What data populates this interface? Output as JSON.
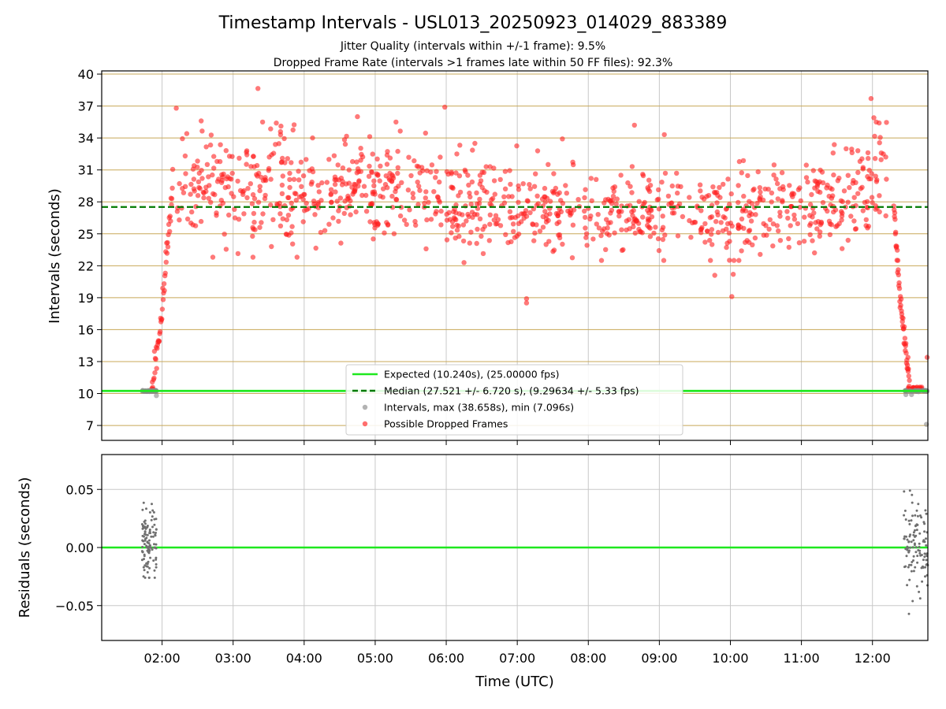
{
  "chart_data": [
    {
      "type": "scatter",
      "title": "Timestamp Intervals - USL013_20250923_014029_883389",
      "subtitle_lines": [
        "Jitter Quality (intervals within +/-1 frame): 9.5%",
        "Dropped Frame Rate (intervals >1 frames late within 50 FF files): 92.3%"
      ],
      "xlabel": "",
      "ylabel": "Intervals (seconds)",
      "x_unit": "hours (UTC)",
      "xlim": [
        1.15,
        12.78
      ],
      "ylim": [
        5.6,
        40.3
      ],
      "yticks": [
        7,
        10,
        13,
        16,
        19,
        22,
        25,
        28,
        31,
        34,
        37,
        40
      ],
      "grid": true,
      "horizontal_gridlines_color": "#c8a858",
      "vertical_gridlines_color": "#c8c8c8",
      "expected_interval": 10.24,
      "median_interval": 27.521,
      "legend_placement": "lower-center",
      "series": [
        {
          "name": "Expected (10.240s), (25.00000 fps)",
          "kind": "hline",
          "y": 10.24,
          "color": "#1ee81e",
          "style": "solid"
        },
        {
          "name": "Median (27.521 +/- 6.720 s), (9.29634 +/- 5.33 fps)",
          "kind": "hline",
          "y": 27.521,
          "color": "#007a00",
          "style": "dashed"
        },
        {
          "name": "Intervals, max (38.658s), min (7.096s)",
          "kind": "scatter",
          "color": "#8a8a8a",
          "max": 38.658,
          "min": 7.096,
          "baseline_clusters": [
            {
              "x_start": 1.7,
              "x_end": 1.92,
              "y": 10.24
            },
            {
              "x_start": 12.45,
              "x_end": 12.78,
              "y": 10.24
            }
          ],
          "outliers": [
            [
              1.92,
              9.8
            ],
            [
              12.47,
              9.9
            ],
            [
              12.55,
              9.9
            ],
            [
              12.76,
              7.1
            ]
          ]
        },
        {
          "name": "Possible Dropped Frames",
          "kind": "scatter",
          "color": "#ff2020",
          "points_approx": 1150,
          "notable_points": [
            [
              3.35,
              38.65
            ],
            [
              11.98,
              37.7
            ],
            [
              2.2,
              36.8
            ],
            [
              5.98,
              36.9
            ],
            [
              12.02,
              35.9
            ],
            [
              4.75,
              36.0
            ],
            [
              8.65,
              35.2
            ],
            [
              2.55,
              35.6
            ],
            [
              7.13,
              18.9
            ],
            [
              7.13,
              18.5
            ],
            [
              10.02,
              19.1
            ],
            [
              9.78,
              21.1
            ],
            [
              10.04,
              21.2
            ],
            [
              3.9,
              22.8
            ],
            [
              3.28,
              22.8
            ],
            [
              6.25,
              22.3
            ],
            [
              12.5,
              13.4
            ],
            [
              12.77,
              13.4
            ]
          ],
          "ramp_up": {
            "x_start": 1.85,
            "x_end": 2.15,
            "y_from": 10.3,
            "y_to": 30.0
          },
          "ramp_down": {
            "x_start": 12.3,
            "x_end": 12.52,
            "y_from": 28.0,
            "y_to": 10.4
          },
          "plateau": [
            {
              "x": 2.2,
              "mean": 29.5,
              "spread": 2.4
            },
            {
              "x": 5.0,
              "mean": 29.0,
              "spread": 2.5
            },
            {
              "x": 6.0,
              "mean": 28.0,
              "spread": 2.5
            },
            {
              "x": 7.0,
              "mean": 27.2,
              "spread": 2.1
            },
            {
              "x": 8.0,
              "mean": 27.3,
              "spread": 2.0
            },
            {
              "x": 10.0,
              "mean": 26.9,
              "spread": 1.9
            },
            {
              "x": 11.0,
              "mean": 27.5,
              "spread": 2.1
            },
            {
              "x": 12.2,
              "mean": 29.5,
              "spread": 2.4
            }
          ]
        }
      ]
    },
    {
      "type": "scatter",
      "title": "",
      "xlabel": "Time (UTC)",
      "ylabel": "Residuals (seconds)",
      "xlim": [
        1.15,
        12.78
      ],
      "ylim": [
        -0.08,
        0.08
      ],
      "yticks": [
        0.05,
        0.0,
        -0.05
      ],
      "ytick_labels": [
        "0.05",
        "0.00",
        "−0.05"
      ],
      "xticks": [
        2,
        3,
        4,
        5,
        6,
        7,
        8,
        9,
        10,
        11,
        12
      ],
      "xtick_labels": [
        "02:00",
        "03:00",
        "04:00",
        "05:00",
        "06:00",
        "07:00",
        "08:00",
        "09:00",
        "10:00",
        "11:00",
        "12:00"
      ],
      "grid": true,
      "series": [
        {
          "kind": "hline",
          "y": 0.0,
          "color": "#1ee81e",
          "style": "solid"
        },
        {
          "kind": "scatter",
          "color": "#707070",
          "clusters": [
            {
              "x_start": 1.72,
              "x_end": 1.92,
              "mean": 0.005,
              "spread": 0.022,
              "min": -0.026,
              "max": 0.043
            },
            {
              "x_start": 12.44,
              "x_end": 12.78,
              "mean": 0.002,
              "spread": 0.025,
              "min": -0.06,
              "max": 0.052
            }
          ]
        }
      ]
    }
  ]
}
